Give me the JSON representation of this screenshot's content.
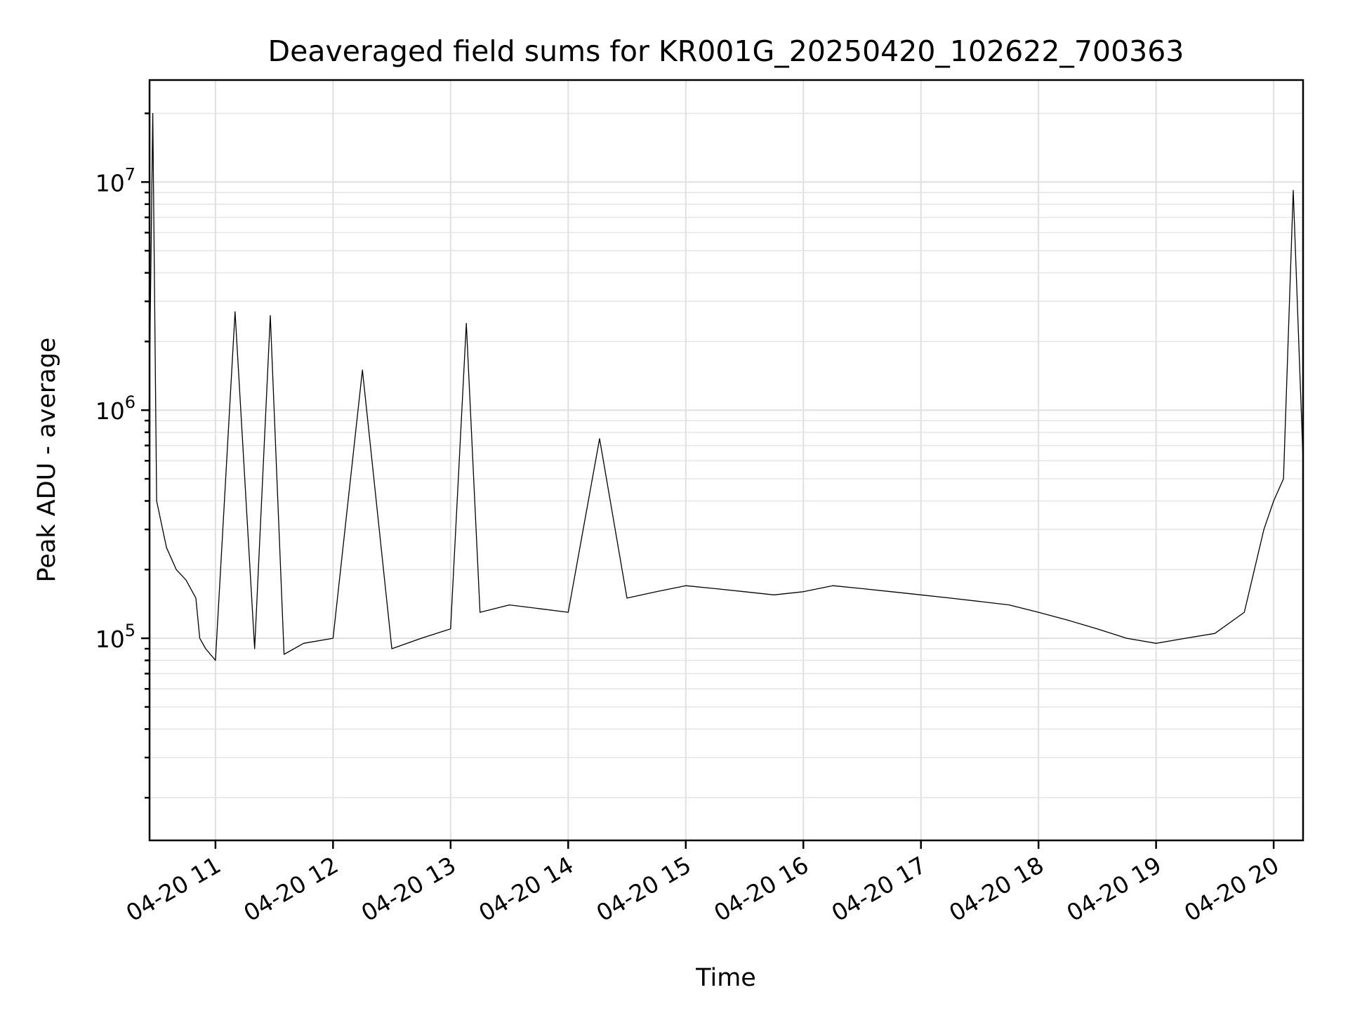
{
  "chart_data": {
    "type": "line",
    "title": "Deaveraged field sums for KR001G_20250420_102622_700363",
    "xlabel": "Time",
    "ylabel": "Peak ADU - average",
    "xscale": "time",
    "yscale": "log",
    "xlim": [
      "2025-04-20 10:26:22",
      "2025-04-20 20:15:00"
    ],
    "ylim": [
      13000,
      28000000
    ],
    "grid": true,
    "legend": "none",
    "line_color": "#000000",
    "x_ticks": [
      "04-20 11",
      "04-20 12",
      "04-20 13",
      "04-20 14",
      "04-20 15",
      "04-20 16",
      "04-20 17",
      "04-20 18",
      "04-20 19",
      "04-20 20"
    ],
    "y_ticks": [
      {
        "value": 100000,
        "base": "10",
        "exp": "5"
      },
      {
        "value": 1000000,
        "base": "10",
        "exp": "6"
      },
      {
        "value": 10000000,
        "base": "10",
        "exp": "7"
      }
    ],
    "series": [
      {
        "x": [
          "2025-04-20 10:26",
          "2025-04-20 10:28",
          "2025-04-20 10:30",
          "2025-04-20 10:35",
          "2025-04-20 10:40",
          "2025-04-20 10:45",
          "2025-04-20 10:50",
          "2025-04-20 10:52",
          "2025-04-20 10:55",
          "2025-04-20 11:00",
          "2025-04-20 11:10",
          "2025-04-20 11:20",
          "2025-04-20 11:28",
          "2025-04-20 11:35",
          "2025-04-20 11:45",
          "2025-04-20 12:00",
          "2025-04-20 12:15",
          "2025-04-20 12:30",
          "2025-04-20 12:45",
          "2025-04-20 13:00",
          "2025-04-20 13:08",
          "2025-04-20 13:15",
          "2025-04-20 13:30",
          "2025-04-20 13:45",
          "2025-04-20 14:00",
          "2025-04-20 14:16",
          "2025-04-20 14:30",
          "2025-04-20 14:45",
          "2025-04-20 15:00",
          "2025-04-20 15:15",
          "2025-04-20 15:30",
          "2025-04-20 15:45",
          "2025-04-20 16:00",
          "2025-04-20 16:15",
          "2025-04-20 16:30",
          "2025-04-20 16:45",
          "2025-04-20 17:00",
          "2025-04-20 17:15",
          "2025-04-20 17:30",
          "2025-04-20 17:45",
          "2025-04-20 18:00",
          "2025-04-20 18:15",
          "2025-04-20 18:30",
          "2025-04-20 18:45",
          "2025-04-20 19:00",
          "2025-04-20 19:15",
          "2025-04-20 19:30",
          "2025-04-20 19:45",
          "2025-04-20 19:55",
          "2025-04-20 20:00",
          "2025-04-20 20:05",
          "2025-04-20 20:10",
          "2025-04-20 20:15"
        ],
        "y": [
          800000,
          20000000,
          400000,
          250000,
          200000,
          180000,
          150000,
          100000,
          90000,
          80000,
          2700000,
          90000,
          2600000,
          85000,
          95000,
          100000,
          1500000,
          90000,
          100000,
          110000,
          2400000,
          130000,
          140000,
          135000,
          130000,
          750000,
          150000,
          160000,
          170000,
          165000,
          160000,
          155000,
          160000,
          170000,
          165000,
          160000,
          155000,
          150000,
          145000,
          140000,
          130000,
          120000,
          110000,
          100000,
          95000,
          100000,
          105000,
          130000,
          300000,
          400000,
          500000,
          9200000,
          600000
        ]
      }
    ]
  }
}
